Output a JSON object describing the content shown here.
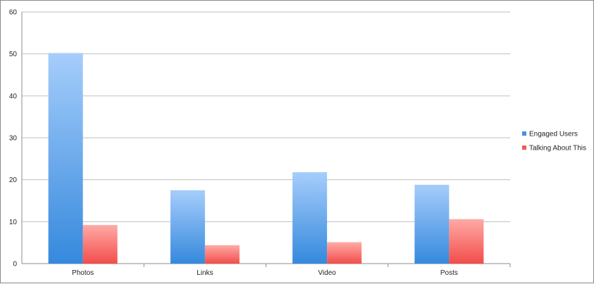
{
  "chart_data": {
    "type": "bar",
    "categories": [
      "Photos",
      "Links",
      "Video",
      "Posts"
    ],
    "series": [
      {
        "name": "Engaged Users",
        "values": [
          50.2,
          17.5,
          21.8,
          18.8
        ],
        "color": "#4a90e2"
      },
      {
        "name": "Talking About This",
        "values": [
          9.2,
          4.4,
          5.1,
          10.6
        ],
        "color": "#f2605c"
      }
    ],
    "y_ticks": [
      "0",
      "10",
      "20",
      "30",
      "40",
      "50",
      "60"
    ],
    "ylim": [
      0,
      60
    ],
    "grid": true,
    "legend_position": "right"
  }
}
